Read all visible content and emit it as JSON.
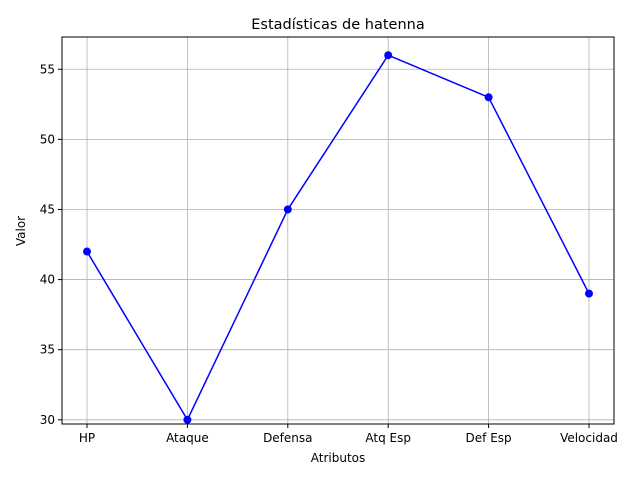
{
  "chart_data": {
    "type": "line",
    "title": "Estadísticas de hatenna",
    "xlabel": "Atributos",
    "ylabel": "Valor",
    "categories": [
      "HP",
      "Ataque",
      "Defensa",
      "Atq Esp",
      "Def Esp",
      "Velocidad"
    ],
    "values": [
      42,
      30,
      45,
      56,
      53,
      39
    ],
    "yticks": [
      30,
      35,
      40,
      45,
      50,
      55
    ],
    "ylim": [
      29.7,
      57.3
    ],
    "grid": true,
    "marker": "circle",
    "color": "#0000ff"
  }
}
